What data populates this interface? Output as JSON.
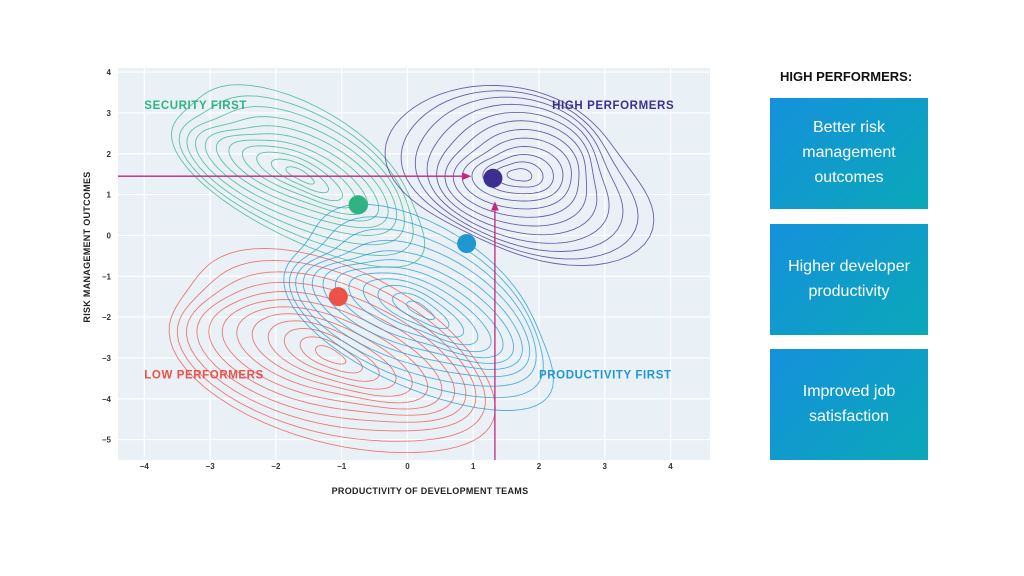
{
  "colors": {
    "plot_bg": "#e9f0f6",
    "grid": "#ffffff",
    "security_first": "#2fb383",
    "high_performers": "#3d2f8f",
    "low_performers": "#ec5248",
    "productivity_first": "#1f98d2",
    "arrow": "#c4287d",
    "box_gradient_start": "#1591dc",
    "box_gradient_end": "#0aa8b8"
  },
  "chart_data": {
    "type": "scatter",
    "xlabel": "PRODUCTIVITY OF DEVELOPMENT TEAMS",
    "ylabel": "RISK MANAGEMENT OUTCOMES",
    "xlim": [
      -4.4,
      4.6
    ],
    "ylim": [
      -5.5,
      4.1
    ],
    "xticks": [
      "−4",
      "−3",
      "−2",
      "−1",
      "0",
      "1",
      "2",
      "3",
      "4"
    ],
    "yticks": [
      "4",
      "3",
      "2",
      "1",
      "0",
      "−1",
      "−2",
      "−3",
      "−4",
      "−5"
    ],
    "grid": true,
    "series": [
      {
        "name": "SECURITY FIRST",
        "x": -0.75,
        "y": 0.75,
        "color": "#2fb383",
        "label_pos": [
          -4.0,
          3.1
        ]
      },
      {
        "name": "HIGH PERFORMERS",
        "x": 1.3,
        "y": 1.4,
        "color": "#3d2f8f",
        "label_pos": [
          2.2,
          3.1
        ]
      },
      {
        "name": "LOW PERFORMERS",
        "x": -1.05,
        "y": -1.5,
        "color": "#ec5248",
        "label_pos": [
          -4.0,
          -3.5
        ]
      },
      {
        "name": "PRODUCTIVITY FIRST",
        "x": 0.9,
        "y": -0.2,
        "color": "#1f98d2",
        "label_pos": [
          2.0,
          -3.5
        ]
      }
    ],
    "annotations": [
      {
        "type": "arrow",
        "from": [
          -4.4,
          1.45
        ],
        "to": [
          0.95,
          1.45
        ]
      },
      {
        "type": "arrow",
        "from": [
          1.33,
          -5.5
        ],
        "to": [
          1.33,
          0.8
        ]
      }
    ]
  },
  "side_panel": {
    "title": "HIGH PERFORMERS:",
    "items": [
      "Better risk management outcomes",
      "Higher developer productivity",
      "Improved job satisfaction"
    ]
  }
}
